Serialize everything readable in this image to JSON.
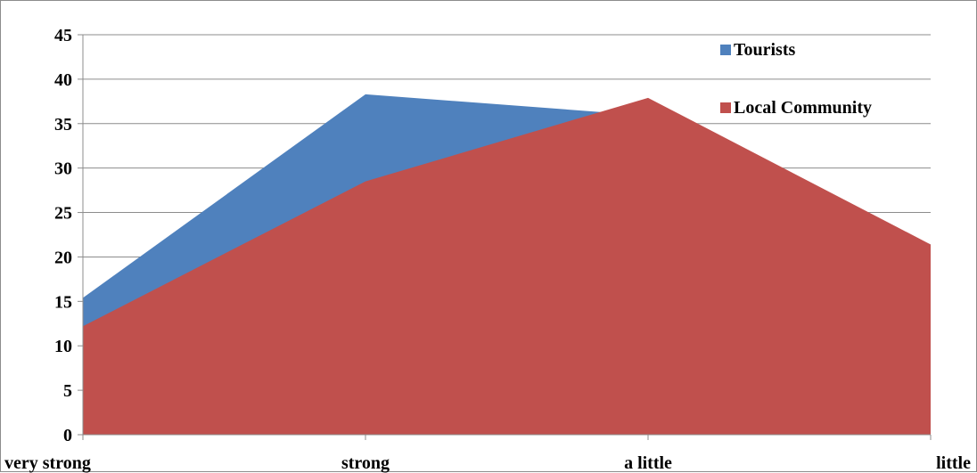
{
  "chart_data": {
    "type": "area",
    "categories": [
      "very strong",
      "strong",
      "a little",
      "little"
    ],
    "series": [
      {
        "name": "Tourists",
        "values": [
          15.4,
          38.3,
          35.9,
          21.4
        ],
        "color": "#4F81BD"
      },
      {
        "name": "Local Community",
        "values": [
          12.2,
          28.5,
          37.9,
          21.4
        ],
        "color": "#C0504D"
      }
    ],
    "ylim": [
      0,
      45
    ],
    "yticks": [
      0,
      5,
      10,
      15,
      20,
      25,
      30,
      35,
      40,
      45
    ],
    "grid": true,
    "legend_position": "top-right"
  }
}
